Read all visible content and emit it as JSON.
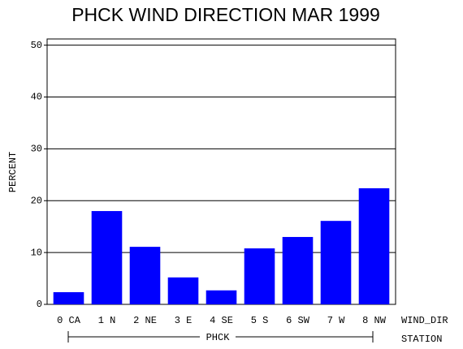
{
  "chart_data": {
    "type": "bar",
    "title": "PHCK WIND DIRECTION MAR 1999",
    "ylabel": "PERCENT",
    "categories": [
      "0 CA",
      "1 N",
      "2 NE",
      "3 E",
      "4 SE",
      "5 S",
      "6 SW",
      "7 W",
      "8 NW"
    ],
    "values": [
      2.35,
      18.0,
      11.1,
      5.2,
      2.7,
      10.8,
      13.0,
      16.1,
      22.4
    ],
    "color": "#0000ff",
    "ylim": [
      0,
      51.2
    ],
    "yticks": [
      0,
      10,
      20,
      30,
      40,
      50
    ],
    "grid": true,
    "xlabel": "WIND_DIR",
    "group": "PHCK",
    "group_label": "STATION"
  }
}
